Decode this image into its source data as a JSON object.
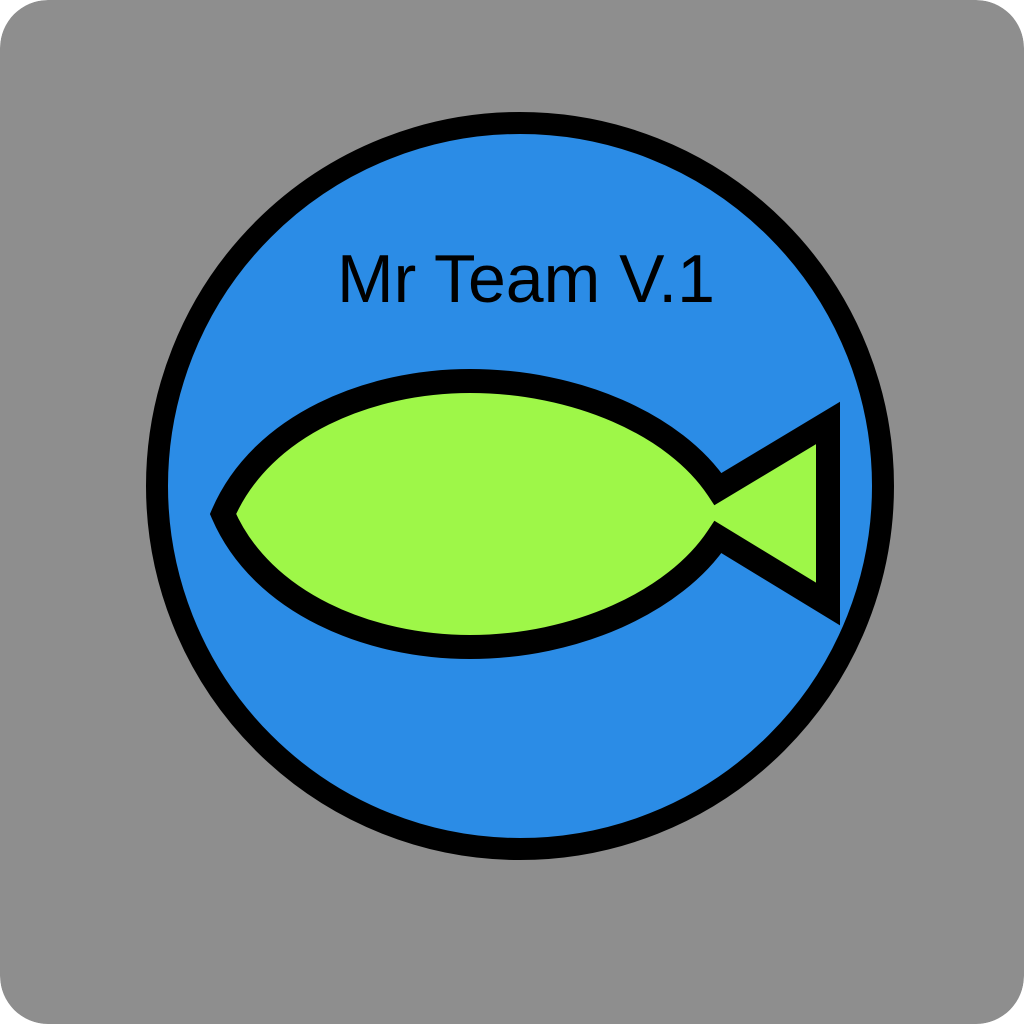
{
  "logo": {
    "title": "Mr Team V.1",
    "icon": "fish-icon"
  },
  "colors": {
    "tile_background": "#8e8e8e",
    "badge_fill": "#2b8ce6",
    "outline": "#000000",
    "fish_fill": "#9ef748",
    "text": "#000000"
  }
}
